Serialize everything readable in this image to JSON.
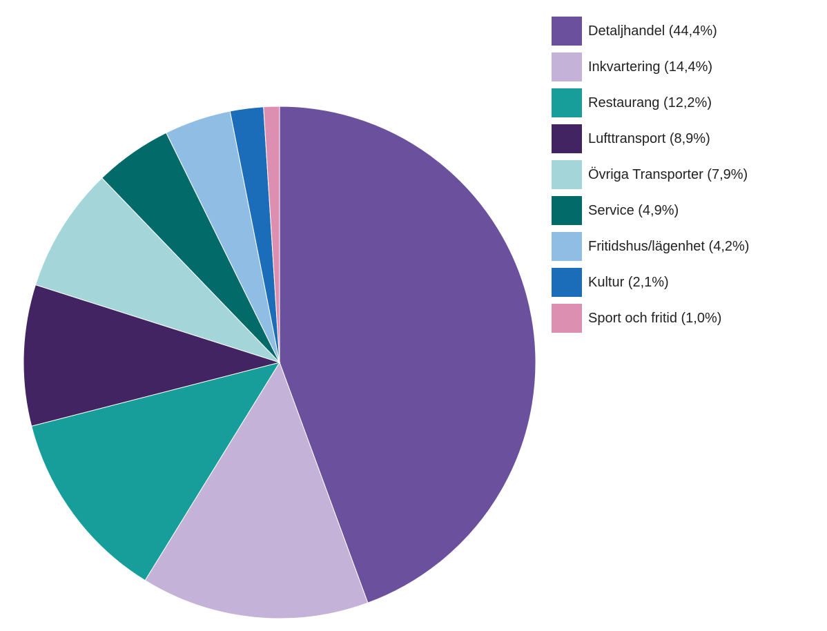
{
  "chart_data": {
    "type": "pie",
    "title": "",
    "legend_position": "right",
    "start": "top, clockwise",
    "slices": [
      {
        "label": "Detaljhandel",
        "value": 44.4,
        "legend": "Detaljhandel (44,4%)",
        "color": "#6a509d"
      },
      {
        "label": "Inkvartering",
        "value": 14.4,
        "legend": "Inkvartering (14,4%)",
        "color": "#c4b2d8"
      },
      {
        "label": "Restaurang",
        "value": 12.2,
        "legend": "Restaurang (12,2%)",
        "color": "#179e9b"
      },
      {
        "label": "Lufttransport",
        "value": 8.9,
        "legend": "Lufttransport (8,9%)",
        "color": "#432462"
      },
      {
        "label": "Övriga Transporter",
        "value": 7.9,
        "legend": "Övriga Transporter (7,9%)",
        "color": "#a4d5d9"
      },
      {
        "label": "Service",
        "value": 4.9,
        "legend": "Service (4,9%)",
        "color": "#036a6a"
      },
      {
        "label": "Fritidshus/lägenhet",
        "value": 4.2,
        "legend": "Fritidshus/lägenhet (4,2%)",
        "color": "#8fbde3"
      },
      {
        "label": "Kultur",
        "value": 2.1,
        "legend": "Kultur (2,1%)",
        "color": "#1c6db9"
      },
      {
        "label": "Sport och fritid",
        "value": 1.0,
        "legend": "Sport och fritid (1,0%)",
        "color": "#dd8fb2"
      }
    ]
  }
}
